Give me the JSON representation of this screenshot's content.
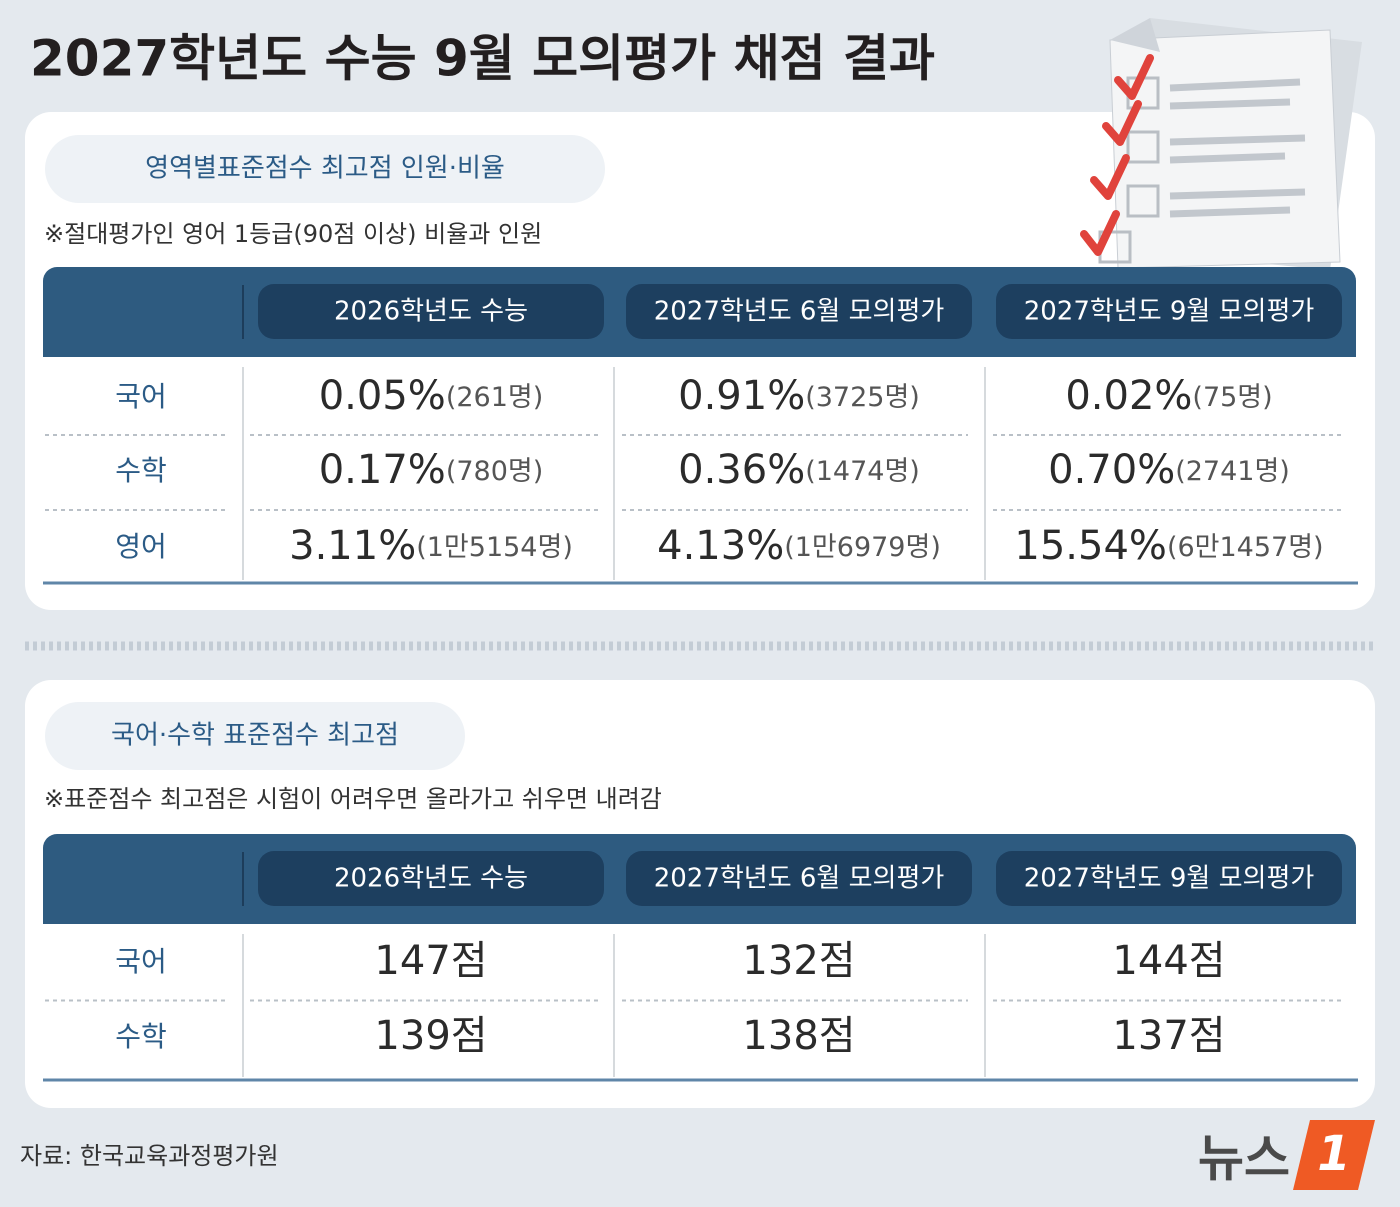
{
  "header": {
    "title": "2027학년도 수능 9월 모의평가 채점 결과"
  },
  "sections": [
    {
      "label": "영역별표준점수 최고점 인원·비율",
      "note": "※절대평가인 영어 1등급(90점 이상) 비율과 인원",
      "table": {
        "columns": [
          "2026학년도 수능",
          "2027학년도 6월 모의평가",
          "2027학년도 9월 모의평가"
        ],
        "rows": [
          {
            "label": "국어",
            "cells": [
              {
                "rate": "0.05%",
                "count": "(261명)"
              },
              {
                "rate": "0.91%",
                "count": "(3725명)"
              },
              {
                "rate": "0.02%",
                "count": "(75명)"
              }
            ]
          },
          {
            "label": "수학",
            "cells": [
              {
                "rate": "0.17%",
                "count": "(780명)"
              },
              {
                "rate": "0.36%",
                "count": "(1474명)"
              },
              {
                "rate": "0.70%",
                "count": "(2741명)"
              }
            ]
          },
          {
            "label": "영어",
            "cells": [
              {
                "rate": "3.11%",
                "count": "(1만5154명)"
              },
              {
                "rate": "4.13%",
                "count": "(1만6979명)"
              },
              {
                "rate": "15.54%",
                "count": "(6만1457명)"
              }
            ]
          }
        ]
      }
    },
    {
      "label": "국어·수학 표준점수 최고점",
      "note": "※표준점수 최고점은 시험이 어려우면 올라가고 쉬우면 내려감",
      "table": {
        "columns": [
          "2026학년도 수능",
          "2027학년도 6월 모의평가",
          "2027학년도 9월 모의평가"
        ],
        "rows": [
          {
            "label": "국어",
            "cells": [
              {
                "score": "147점"
              },
              {
                "score": "132점"
              },
              {
                "score": "144점"
              }
            ]
          },
          {
            "label": "수학",
            "cells": [
              {
                "score": "139점"
              },
              {
                "score": "138점"
              },
              {
                "score": "137점"
              }
            ]
          }
        ]
      }
    }
  ],
  "footer": {
    "source": "자료: 한국교육과정평가원",
    "logo": "뉴스",
    "logo_mark": "1"
  }
}
